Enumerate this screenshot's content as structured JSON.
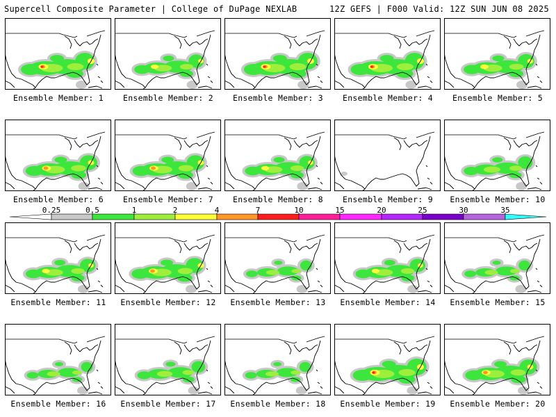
{
  "header": {
    "title_left": "Supercell Composite Parameter | College of DuPage NEXLAB",
    "title_right": "12Z GEFS | F000 Valid: 12Z SUN JUN 08 2025"
  },
  "members": [
    {
      "label": "Ensemble Member: 1",
      "intensity": 1.0
    },
    {
      "label": "Ensemble Member: 2",
      "intensity": 0.8
    },
    {
      "label": "Ensemble Member: 3",
      "intensity": 1.0
    },
    {
      "label": "Ensemble Member: 4",
      "intensity": 1.0
    },
    {
      "label": "Ensemble Member: 5",
      "intensity": 0.85
    },
    {
      "label": "Ensemble Member: 6",
      "intensity": 0.9
    },
    {
      "label": "Ensemble Member: 7",
      "intensity": 0.9
    },
    {
      "label": "Ensemble Member: 8",
      "intensity": 0.8
    },
    {
      "label": "Ensemble Member: 9",
      "intensity": 0.0
    },
    {
      "label": "Ensemble Member: 10",
      "intensity": 0.75
    },
    {
      "label": "Ensemble Member: 11",
      "intensity": 0.8
    },
    {
      "label": "Ensemble Member: 12",
      "intensity": 0.9
    },
    {
      "label": "Ensemble Member: 13",
      "intensity": 0.6
    },
    {
      "label": "Ensemble Member: 14",
      "intensity": 0.8
    },
    {
      "label": "Ensemble Member: 15",
      "intensity": 0.6
    },
    {
      "label": "Ensemble Member: 16",
      "intensity": 0.6
    },
    {
      "label": "Ensemble Member: 17",
      "intensity": 0.7
    },
    {
      "label": "Ensemble Member: 18",
      "intensity": 0.6
    },
    {
      "label": "Ensemble Member: 19",
      "intensity": 1.0
    },
    {
      "label": "Ensemble Member: 20",
      "intensity": 0.9
    }
  ],
  "legend": {
    "tick_labels": [
      "0.25",
      "0.5",
      "1",
      "2",
      "4",
      "7",
      "10",
      "15",
      "20",
      "25",
      "30",
      "35"
    ],
    "colors": [
      "#ffffff",
      "#c8c8c8",
      "#3ce63c",
      "#a0ee3c",
      "#ffff3c",
      "#ff9628",
      "#ff1e1e",
      "#ff1e96",
      "#ff28ff",
      "#b428ff",
      "#7800c8",
      "#b464dc",
      "#32ffff"
    ]
  },
  "map_colors": {
    "gray": "#c8c8c8",
    "green": "#3ce63c",
    "lightgreen": "#a0ee3c",
    "yellow": "#ffff3c",
    "orange": "#ff9628",
    "red": "#ff1e1e"
  }
}
